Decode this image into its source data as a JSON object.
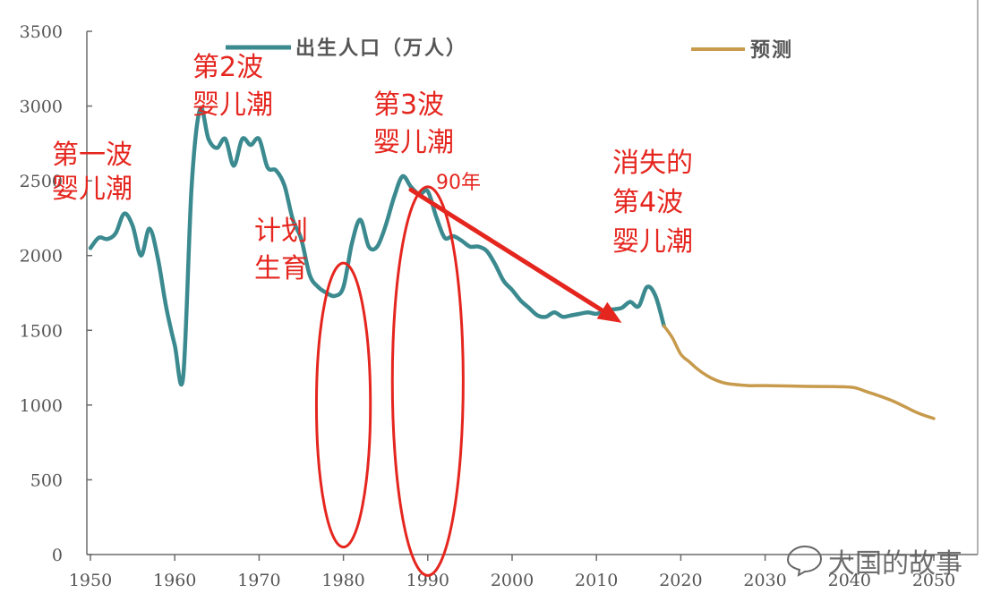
{
  "chart_data": {
    "type": "line",
    "title": "",
    "xlabel": "",
    "ylabel": "",
    "xlim": [
      1950,
      2050
    ],
    "ylim": [
      0,
      3500
    ],
    "y_ticks": [
      0,
      500,
      1000,
      1500,
      2000,
      2500,
      3000,
      3500
    ],
    "x_ticks": [
      1950,
      1960,
      1970,
      1980,
      1990,
      2000,
      2010,
      2020,
      2030,
      2040,
      2050
    ],
    "grid": false,
    "legend_position": "top",
    "series": [
      {
        "name": "出生人口（万人）",
        "color": "#3b8a8f",
        "points": [
          [
            1950,
            2050
          ],
          [
            1951,
            2120
          ],
          [
            1952,
            2110
          ],
          [
            1953,
            2150
          ],
          [
            1954,
            2280
          ],
          [
            1955,
            2200
          ],
          [
            1956,
            2000
          ],
          [
            1957,
            2180
          ],
          [
            1958,
            1980
          ],
          [
            1959,
            1650
          ],
          [
            1960,
            1400
          ],
          [
            1961,
            1190
          ],
          [
            1962,
            2460
          ],
          [
            1963,
            2980
          ],
          [
            1964,
            2780
          ],
          [
            1965,
            2720
          ],
          [
            1966,
            2780
          ],
          [
            1967,
            2600
          ],
          [
            1968,
            2780
          ],
          [
            1969,
            2740
          ],
          [
            1970,
            2780
          ],
          [
            1971,
            2590
          ],
          [
            1972,
            2570
          ],
          [
            1973,
            2470
          ],
          [
            1974,
            2240
          ],
          [
            1975,
            2110
          ],
          [
            1976,
            1870
          ],
          [
            1977,
            1790
          ],
          [
            1978,
            1750
          ],
          [
            1979,
            1730
          ],
          [
            1980,
            1790
          ],
          [
            1981,
            2080
          ],
          [
            1982,
            2240
          ],
          [
            1983,
            2060
          ],
          [
            1984,
            2060
          ],
          [
            1985,
            2200
          ],
          [
            1986,
            2390
          ],
          [
            1987,
            2530
          ],
          [
            1988,
            2460
          ],
          [
            1989,
            2410
          ],
          [
            1990,
            2430
          ],
          [
            1991,
            2260
          ],
          [
            1992,
            2120
          ],
          [
            1993,
            2130
          ],
          [
            1994,
            2100
          ],
          [
            1995,
            2060
          ],
          [
            1996,
            2060
          ],
          [
            1997,
            2030
          ],
          [
            1998,
            1940
          ],
          [
            1999,
            1830
          ],
          [
            2000,
            1770
          ],
          [
            2001,
            1700
          ],
          [
            2002,
            1650
          ],
          [
            2003,
            1600
          ],
          [
            2004,
            1590
          ],
          [
            2005,
            1620
          ],
          [
            2006,
            1590
          ],
          [
            2007,
            1600
          ],
          [
            2008,
            1610
          ],
          [
            2009,
            1620
          ],
          [
            2010,
            1610
          ],
          [
            2011,
            1630
          ],
          [
            2012,
            1640
          ],
          [
            2013,
            1650
          ],
          [
            2014,
            1690
          ],
          [
            2015,
            1660
          ],
          [
            2016,
            1790
          ],
          [
            2017,
            1730
          ],
          [
            2018,
            1530
          ]
        ]
      },
      {
        "name": "预测",
        "color": "#c79a4c",
        "points": [
          [
            2018,
            1530
          ],
          [
            2019,
            1450
          ],
          [
            2020,
            1340
          ],
          [
            2021,
            1290
          ],
          [
            2022,
            1240
          ],
          [
            2023,
            1200
          ],
          [
            2024,
            1170
          ],
          [
            2025,
            1150
          ],
          [
            2026,
            1140
          ],
          [
            2028,
            1130
          ],
          [
            2030,
            1130
          ],
          [
            2035,
            1125
          ],
          [
            2040,
            1120
          ],
          [
            2042,
            1090
          ],
          [
            2045,
            1030
          ],
          [
            2048,
            950
          ],
          [
            2050,
            910
          ]
        ]
      }
    ],
    "annotations": [
      {
        "id": "wave1",
        "lines": [
          "第一波",
          "婴儿潮"
        ]
      },
      {
        "id": "wave2",
        "lines": [
          "第2波",
          "婴儿潮"
        ]
      },
      {
        "id": "plan",
        "lines": [
          "计划",
          "生育"
        ]
      },
      {
        "id": "wave3",
        "lines": [
          "第3波",
          "婴儿潮"
        ]
      },
      {
        "id": "y90",
        "lines": [
          "90年"
        ]
      },
      {
        "id": "wave4",
        "lines": [
          "消失的",
          "第4波",
          "婴儿潮"
        ]
      }
    ],
    "highlight_color": "#e5261f",
    "trend_arrow": {
      "from": [
        1988,
        2440
      ],
      "to": [
        2013,
        1550
      ]
    },
    "ellipses": [
      {
        "center": [
          1980,
          1000
        ],
        "radius_x_years": 3.2,
        "radius_y": 950
      },
      {
        "center": [
          1990,
          1160
        ],
        "radius_x_years": 4.2,
        "radius_y": 1300
      }
    ]
  },
  "watermark": "大国的故事"
}
